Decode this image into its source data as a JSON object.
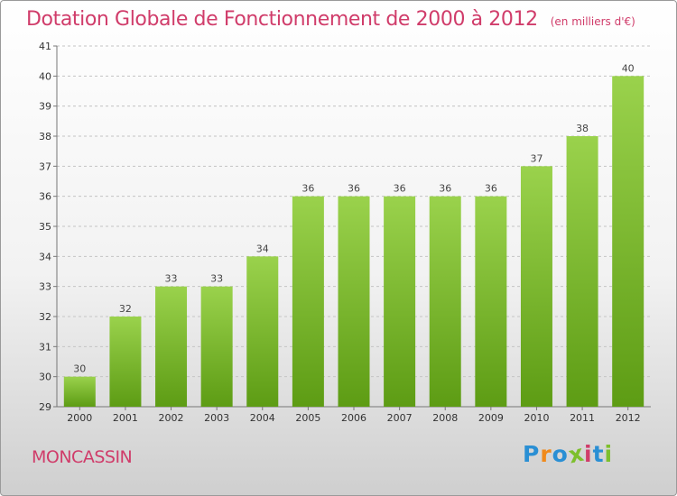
{
  "header": {
    "title": "Dotation Globale de Fonctionnement de 2000 à 2012",
    "subtitle": "(en milliers d'€)"
  },
  "footer": {
    "commune": "MONCASSIN",
    "brand": "Proxiti"
  },
  "colors": {
    "accent": "#d03c6a",
    "bar_top": "#9ad24c",
    "bar_bottom": "#5d9c14"
  },
  "chart_data": {
    "type": "bar",
    "title": "Dotation Globale de Fonctionnement de 2000 à 2012",
    "subtitle": "(en milliers d'€)",
    "categories": [
      "2000",
      "2001",
      "2002",
      "2003",
      "2004",
      "2005",
      "2006",
      "2007",
      "2008",
      "2009",
      "2010",
      "2011",
      "2012"
    ],
    "values": [
      30,
      32,
      33,
      33,
      34,
      36,
      36,
      36,
      36,
      36,
      37,
      38,
      40
    ],
    "xlabel": "",
    "ylabel": "",
    "ylim": [
      29,
      41
    ],
    "yticks": [
      29,
      30,
      31,
      32,
      33,
      34,
      35,
      36,
      37,
      38,
      39,
      40,
      41
    ],
    "grid": "horizontal-dashed",
    "legend": "none"
  }
}
